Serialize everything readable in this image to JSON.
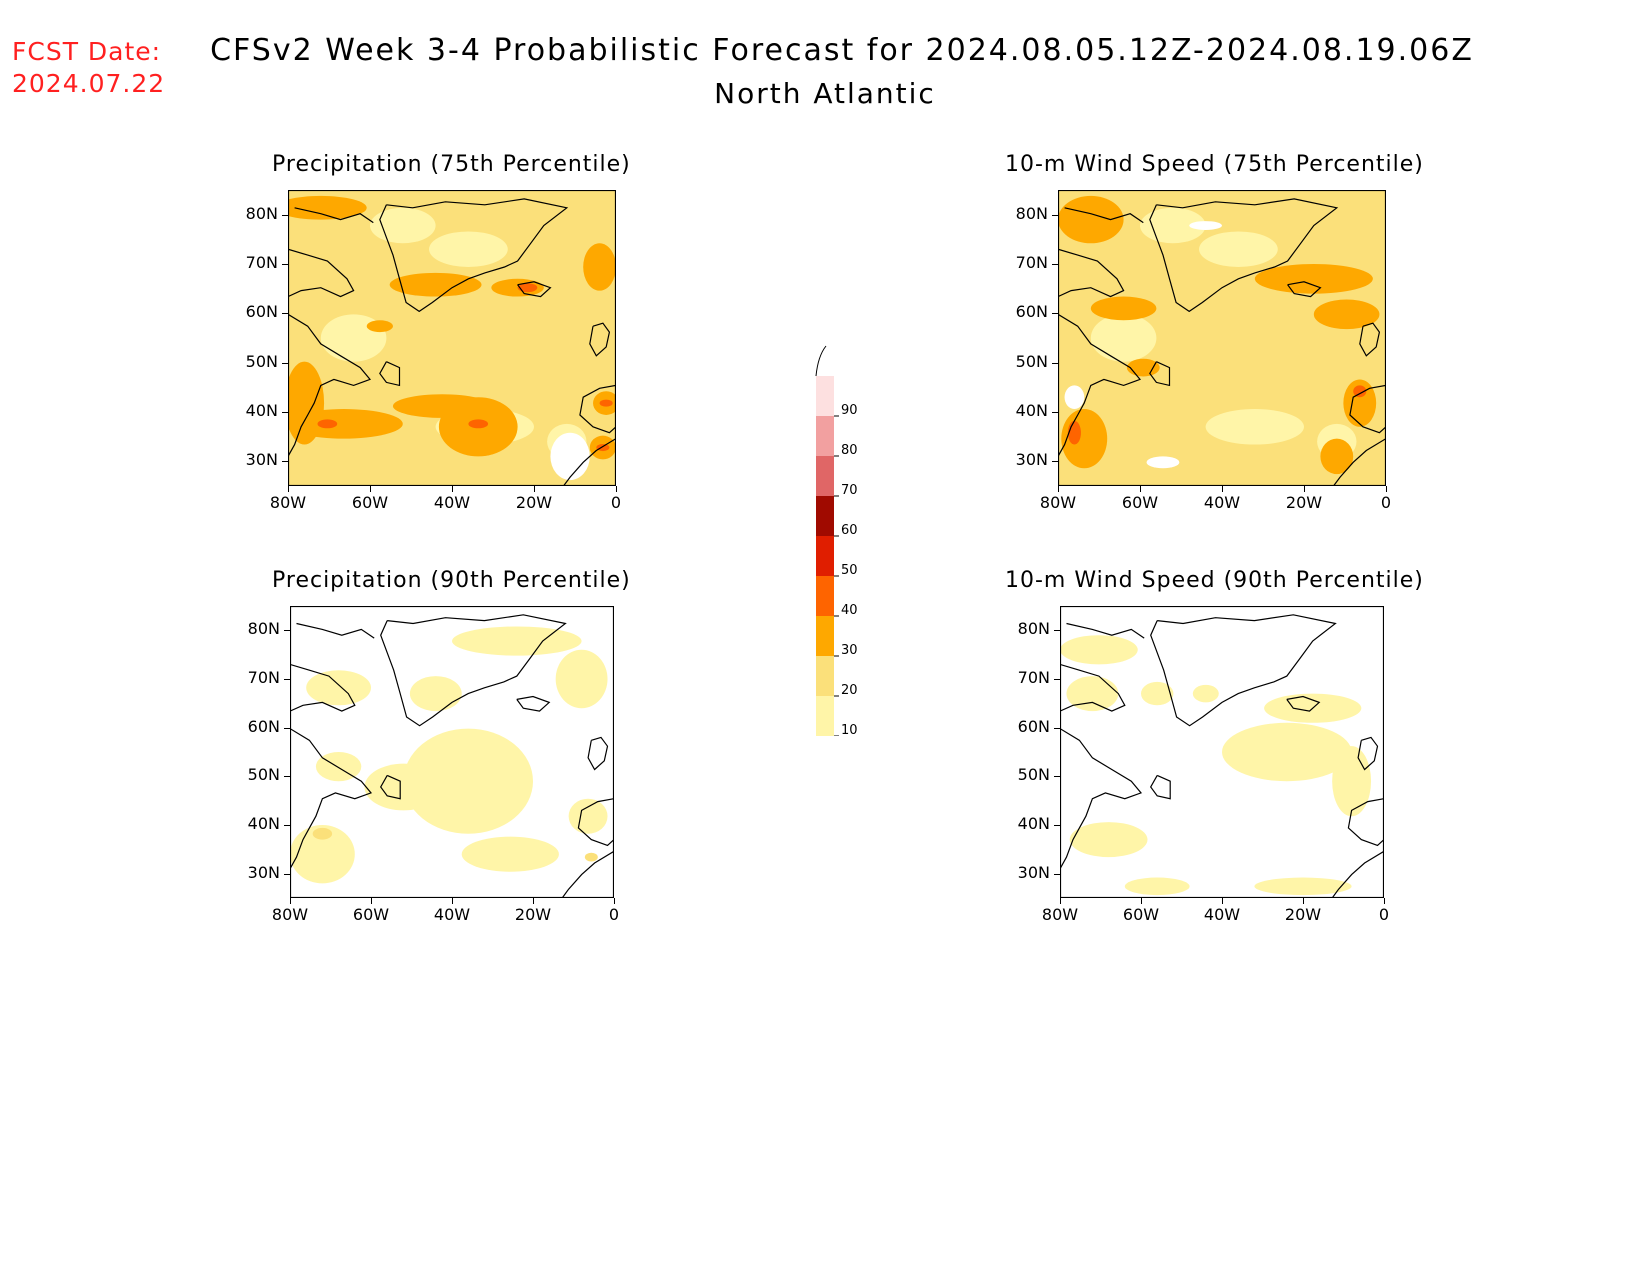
{
  "header": {
    "fcst_label": "FCST Date:",
    "fcst_date": "2024.07.22",
    "title": "CFSv2 Week 3-4 Probabilistic Forecast for 2024.08.05.12Z-2024.08.19.06Z",
    "subtitle": "North Atlantic"
  },
  "axes": {
    "lat_ticks": [
      "80N",
      "70N",
      "60N",
      "50N",
      "40N",
      "30N"
    ],
    "lon_ticks": [
      "80W",
      "60W",
      "40W",
      "20W",
      "0"
    ]
  },
  "panels": [
    {
      "title": "Precipitation (75th Percentile)",
      "id": "p75"
    },
    {
      "title": "10-m Wind Speed (75th Percentile)",
      "id": "w75"
    },
    {
      "title": "Precipitation (90th Percentile)",
      "id": "p90"
    },
    {
      "title": "10-m Wind Speed (90th Percentile)",
      "id": "w90"
    }
  ],
  "colorbar": {
    "levels": [
      "10",
      "20",
      "30",
      "40",
      "50",
      "60",
      "70",
      "80",
      "90"
    ],
    "colors": [
      "#fff5a8",
      "#fbe07a",
      "#fea800",
      "#fe6400",
      "#e01e00",
      "#a00a00",
      "#e06666",
      "#f2a0a0",
      "#fde0e0"
    ]
  },
  "chart_data": {
    "type": "heatmap",
    "title": "CFSv2 Week 3-4 Probabilistic Forecast for 2024.08.05.12Z-2024.08.19.06Z",
    "region": "North Atlantic",
    "lon_range": [
      -80,
      0
    ],
    "lat_range": [
      25,
      85
    ],
    "legend_levels": [
      10,
      20,
      30,
      40,
      50,
      60,
      70,
      80,
      90
    ]
  }
}
